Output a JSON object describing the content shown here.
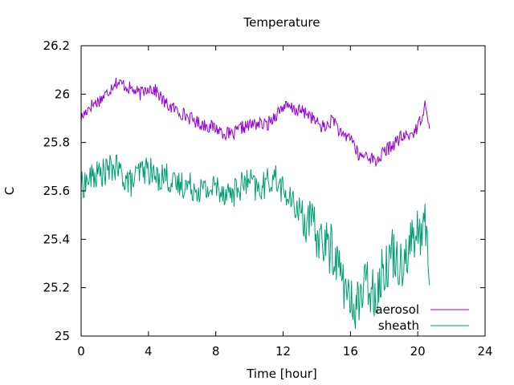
{
  "chart_data": {
    "type": "line",
    "title": "Temperature",
    "xlabel": "Time [hour]",
    "ylabel": "C",
    "xlim": [
      0,
      24
    ],
    "ylim": [
      25,
      26.2
    ],
    "x_ticks": [
      0,
      4,
      8,
      12,
      16,
      20,
      24
    ],
    "y_ticks": [
      25,
      25.2,
      25.4,
      25.6,
      25.8,
      26,
      26.2
    ],
    "x_tick_labels": [
      "0",
      "4",
      "8",
      "12",
      "16",
      "20",
      "24"
    ],
    "y_tick_labels": [
      "25",
      "25.2",
      "25.4",
      "25.6",
      "25.8",
      "26",
      "26.2"
    ],
    "grid": false,
    "legend_position": "bottom-right",
    "series": [
      {
        "name": "aerosol",
        "color": "#9400d3",
        "x": [
          0,
          0.5,
          1,
          1.5,
          2,
          2.5,
          3,
          3.5,
          4,
          4.5,
          5,
          5.5,
          6,
          6.5,
          7,
          7.5,
          8,
          8.5,
          9,
          9.5,
          10,
          10.5,
          11,
          11.5,
          12,
          12.5,
          13,
          13.5,
          14,
          14.5,
          15,
          15.5,
          16,
          16.5,
          17,
          17.5,
          18,
          18.5,
          19,
          19.5,
          20,
          20.5,
          20.7
        ],
        "y": [
          25.9,
          25.95,
          25.97,
          26.0,
          26.05,
          26.04,
          26.02,
          26.0,
          26.03,
          26.01,
          25.96,
          25.94,
          25.92,
          25.9,
          25.88,
          25.87,
          25.86,
          25.84,
          25.83,
          25.86,
          25.87,
          25.88,
          25.87,
          25.91,
          25.95,
          25.94,
          25.93,
          25.92,
          25.88,
          25.86,
          25.9,
          25.82,
          25.83,
          25.74,
          25.75,
          25.72,
          25.76,
          25.79,
          25.82,
          25.83,
          25.86,
          25.97,
          25.85
        ]
      },
      {
        "name": "sheath",
        "color": "#009e73",
        "x": [
          0,
          0.5,
          1,
          1.5,
          2,
          2.5,
          3,
          3.5,
          4,
          4.5,
          5,
          5.5,
          6,
          6.5,
          7,
          7.5,
          8,
          8.5,
          9,
          9.5,
          10,
          10.5,
          11,
          11.5,
          12,
          12.5,
          13,
          13.5,
          14,
          14.5,
          15,
          15.5,
          16,
          16.5,
          17,
          17.5,
          18,
          18.5,
          19,
          19.5,
          20,
          20.5,
          20.7
        ],
        "y": [
          25.62,
          25.65,
          25.67,
          25.68,
          25.7,
          25.66,
          25.63,
          25.68,
          25.69,
          25.65,
          25.67,
          25.62,
          25.63,
          25.62,
          25.61,
          25.6,
          25.62,
          25.6,
          25.59,
          25.62,
          25.64,
          25.6,
          25.63,
          25.66,
          25.6,
          25.55,
          25.52,
          25.47,
          25.42,
          25.38,
          25.35,
          25.25,
          25.12,
          25.15,
          25.22,
          25.18,
          25.28,
          25.35,
          25.3,
          25.38,
          25.42,
          25.45,
          25.28
        ]
      }
    ]
  }
}
